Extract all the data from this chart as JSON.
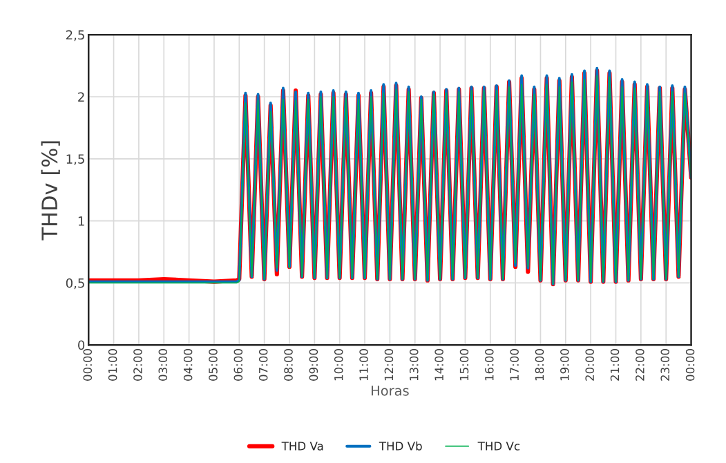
{
  "chart_data": {
    "type": "line",
    "xlabel": "Horas",
    "ylabel": "THDv [%]",
    "x": [
      0,
      1,
      2,
      3,
      4,
      5,
      5.9,
      6,
      6.25,
      6.5,
      6.75,
      7,
      7.25,
      7.5,
      7.75,
      8,
      8.25,
      8.5,
      8.75,
      9,
      9.25,
      9.5,
      9.75,
      10,
      10.25,
      10.5,
      10.75,
      11,
      11.25,
      11.5,
      11.75,
      12,
      12.25,
      12.5,
      12.75,
      13,
      13.25,
      13.5,
      13.75,
      14,
      14.25,
      14.5,
      14.75,
      15,
      15.25,
      15.5,
      15.75,
      16,
      16.25,
      16.5,
      16.75,
      17,
      17.25,
      17.5,
      17.75,
      18,
      18.25,
      18.5,
      18.75,
      19,
      19.25,
      19.5,
      19.75,
      20,
      20.25,
      20.5,
      20.75,
      21,
      21.25,
      21.5,
      21.75,
      22,
      22.25,
      22.5,
      22.75,
      23,
      23.25,
      23.5,
      23.75,
      24
    ],
    "series": [
      {
        "name": "THD Va",
        "color": "#ff0000",
        "values": [
          0.52,
          0.52,
          0.52,
          0.53,
          0.52,
          0.51,
          0.52,
          0.53,
          2.01,
          0.55,
          2.0,
          0.53,
          1.93,
          0.57,
          2.05,
          0.63,
          2.05,
          0.55,
          2.01,
          0.54,
          2.02,
          0.54,
          2.03,
          0.54,
          2.02,
          0.54,
          2.01,
          0.54,
          2.03,
          0.53,
          2.08,
          0.53,
          2.09,
          0.53,
          2.06,
          0.53,
          1.99,
          0.52,
          2.03,
          0.53,
          2.05,
          0.53,
          2.06,
          0.54,
          2.07,
          0.54,
          2.07,
          0.53,
          2.08,
          0.53,
          2.12,
          0.63,
          2.15,
          0.59,
          2.06,
          0.52,
          2.15,
          0.49,
          2.13,
          0.52,
          2.16,
          0.52,
          2.19,
          0.51,
          2.21,
          0.51,
          2.19,
          0.51,
          2.12,
          0.52,
          2.1,
          0.53,
          2.08,
          0.53,
          2.07,
          0.53,
          2.07,
          0.55,
          2.06,
          1.35
        ]
      },
      {
        "name": "THD Vb",
        "color": "#0070c0",
        "values": [
          0.51,
          0.51,
          0.51,
          0.51,
          0.51,
          0.51,
          0.51,
          0.52,
          2.03,
          0.55,
          2.02,
          0.53,
          1.95,
          0.6,
          2.07,
          0.63,
          2.04,
          0.55,
          2.03,
          0.54,
          2.04,
          0.54,
          2.05,
          0.54,
          2.04,
          0.54,
          2.03,
          0.54,
          2.05,
          0.53,
          2.1,
          0.53,
          2.11,
          0.53,
          2.08,
          0.53,
          2.0,
          0.52,
          2.04,
          0.53,
          2.06,
          0.53,
          2.07,
          0.54,
          2.08,
          0.54,
          2.08,
          0.53,
          2.09,
          0.53,
          2.13,
          0.64,
          2.17,
          0.62,
          2.08,
          0.52,
          2.17,
          0.49,
          2.15,
          0.52,
          2.18,
          0.52,
          2.21,
          0.51,
          2.23,
          0.51,
          2.21,
          0.51,
          2.14,
          0.52,
          2.12,
          0.53,
          2.1,
          0.53,
          2.08,
          0.53,
          2.09,
          0.55,
          2.08,
          1.35
        ]
      },
      {
        "name": "THD Vc",
        "color": "#00b050",
        "values": [
          0.5,
          0.5,
          0.5,
          0.5,
          0.5,
          0.5,
          0.5,
          0.51,
          1.95,
          0.55,
          1.97,
          0.53,
          1.88,
          0.62,
          1.98,
          0.62,
          1.97,
          0.55,
          1.98,
          0.54,
          2.0,
          0.54,
          2.0,
          0.54,
          1.99,
          0.54,
          1.98,
          0.54,
          2.0,
          0.53,
          2.03,
          0.53,
          2.06,
          0.53,
          2.04,
          0.53,
          1.98,
          0.52,
          2.02,
          0.53,
          2.03,
          0.53,
          2.04,
          0.54,
          2.05,
          0.54,
          2.05,
          0.53,
          2.05,
          0.53,
          2.08,
          0.66,
          2.1,
          0.63,
          2.02,
          0.52,
          2.1,
          0.49,
          2.08,
          0.52,
          2.12,
          0.52,
          2.14,
          0.51,
          2.17,
          0.51,
          2.16,
          0.51,
          2.08,
          0.52,
          2.07,
          0.53,
          2.05,
          0.53,
          2.04,
          0.53,
          2.04,
          0.55,
          2.03,
          1.35
        ]
      }
    ],
    "xlim": [
      0,
      24
    ],
    "xticks": [
      {
        "value": 0,
        "label": "00:00"
      },
      {
        "value": 1,
        "label": "01:00"
      },
      {
        "value": 2,
        "label": "02:00"
      },
      {
        "value": 3,
        "label": "03:00"
      },
      {
        "value": 4,
        "label": "04:00"
      },
      {
        "value": 5,
        "label": "05:00"
      },
      {
        "value": 6,
        "label": "06:00"
      },
      {
        "value": 7,
        "label": "07:00"
      },
      {
        "value": 8,
        "label": "08:00"
      },
      {
        "value": 9,
        "label": "09:00"
      },
      {
        "value": 10,
        "label": "10:00"
      },
      {
        "value": 11,
        "label": "11:00"
      },
      {
        "value": 12,
        "label": "12:00"
      },
      {
        "value": 13,
        "label": "13:00"
      },
      {
        "value": 14,
        "label": "14:00"
      },
      {
        "value": 15,
        "label": "15:00"
      },
      {
        "value": 16,
        "label": "16:00"
      },
      {
        "value": 17,
        "label": "17:00"
      },
      {
        "value": 18,
        "label": "18:00"
      },
      {
        "value": 19,
        "label": "19:00"
      },
      {
        "value": 20,
        "label": "20:00"
      },
      {
        "value": 21,
        "label": "21:00"
      },
      {
        "value": 22,
        "label": "22:00"
      },
      {
        "value": 23,
        "label": "23:00"
      },
      {
        "value": 24,
        "label": "00:00"
      }
    ],
    "ylim": [
      0,
      2.5
    ],
    "yticks": [
      0,
      {
        "value": 0.5,
        "label": "0,5"
      },
      1,
      {
        "value": 1.5,
        "label": "1,5"
      },
      2,
      {
        "value": 2.5,
        "label": "2,5"
      }
    ],
    "grid": true,
    "legend": "bottom",
    "line_style": "solid",
    "marker": "none"
  }
}
